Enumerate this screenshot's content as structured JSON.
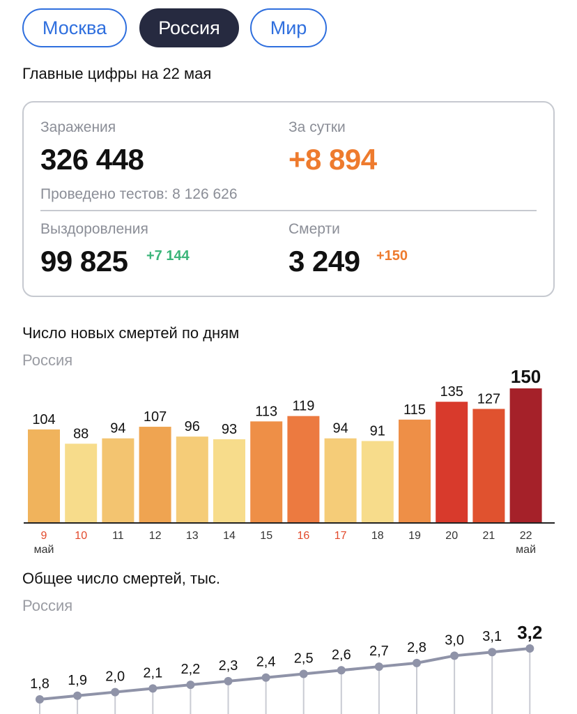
{
  "tabs": [
    {
      "label": "Москва",
      "active": false
    },
    {
      "label": "Россия",
      "active": true
    },
    {
      "label": "Мир",
      "active": false
    }
  ],
  "headline": "Главные цифры на 22 мая",
  "stats": {
    "infections": {
      "label": "Заражения",
      "value": "326 448"
    },
    "daily": {
      "label": "За сутки",
      "value": "+8 894"
    },
    "tests": "Проведено тестов: 8 126 626",
    "recoveries": {
      "label": "Выздоровления",
      "value": "99 825",
      "delta": "+7 144"
    },
    "deaths": {
      "label": "Смерти",
      "value": "3 249",
      "delta": "+150"
    }
  },
  "colors": {
    "accent_blue": "#2f6fde",
    "orange": "#ee7b2e",
    "green": "#3bb57a",
    "weekend_red": "#e2492b"
  },
  "chart_data": [
    {
      "type": "bar",
      "title": "Число новых смертей по дням",
      "subtitle": "Россия",
      "categories": [
        "9",
        "10",
        "11",
        "12",
        "13",
        "14",
        "15",
        "16",
        "17",
        "18",
        "19",
        "20",
        "21",
        "22"
      ],
      "month_label_first": "май",
      "month_label_last": "май",
      "weekend_categories": [
        "9",
        "10",
        "16",
        "17"
      ],
      "values": [
        104,
        88,
        94,
        107,
        96,
        93,
        113,
        119,
        94,
        91,
        115,
        135,
        127,
        150
      ],
      "bar_colors": [
        "#f0b35c",
        "#f7dc8b",
        "#f3c470",
        "#efa451",
        "#f5cc78",
        "#f7dc8b",
        "#ee8f47",
        "#ec7a40",
        "#f5cc78",
        "#f7dc8b",
        "#ee8f47",
        "#d83a2c",
        "#e0522f",
        "#a52129"
      ],
      "ylim": [
        0,
        150
      ]
    },
    {
      "type": "line",
      "title": "Общее число смертей, тыс.",
      "subtitle": "Россия",
      "values": [
        1.8,
        1.9,
        2.0,
        2.1,
        2.2,
        2.3,
        2.4,
        2.5,
        2.6,
        2.7,
        2.8,
        3.0,
        3.1,
        3.2
      ],
      "value_labels": [
        "1,8",
        "1,9",
        "2,0",
        "2,1",
        "2,2",
        "2,3",
        "2,4",
        "2,5",
        "2,6",
        "2,7",
        "2,8",
        "3,0",
        "3,1",
        "3,2"
      ],
      "line_color": "#8f93a8"
    }
  ]
}
